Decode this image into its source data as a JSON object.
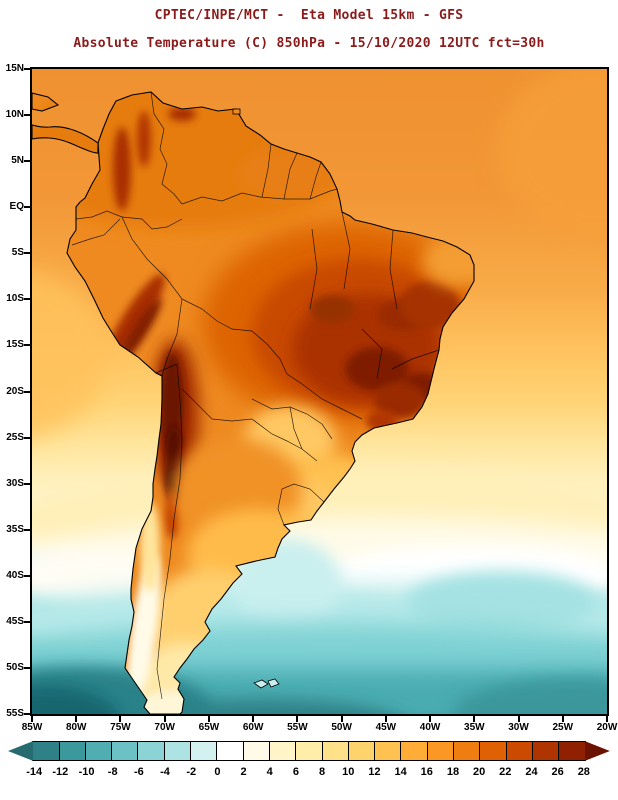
{
  "header": {
    "line1": "CPTEC/INPE/MCT -  Eta Model 15km - GFS",
    "line2": "Absolute Temperature (C) 850hPa - 15/10/2020 12UTC fct=30h",
    "title_color": "#8b1a1a"
  },
  "map": {
    "y_axis_labels": [
      "15N",
      "10N",
      "5N",
      "EQ",
      "5S",
      "10S",
      "15S",
      "20S",
      "25S",
      "30S",
      "35S",
      "40S",
      "45S",
      "50S",
      "55S"
    ],
    "x_axis_labels": [
      "85W",
      "80W",
      "75W",
      "70W",
      "65W",
      "60W",
      "55W",
      "50W",
      "45W",
      "40W",
      "35W",
      "30W",
      "25W",
      "20W"
    ]
  },
  "colorbar": {
    "tick_labels": [
      "-14",
      "-12",
      "-10",
      "-8",
      "-6",
      "-4",
      "-2",
      "0",
      "2",
      "4",
      "6",
      "8",
      "10",
      "12",
      "14",
      "16",
      "18",
      "20",
      "22",
      "24",
      "26",
      "28"
    ],
    "colors": [
      "#276b70",
      "#2e8287",
      "#3b989d",
      "#50adb1",
      "#6bc1c4",
      "#8bd3d5",
      "#aee3e4",
      "#d3f1f1",
      "#ffffff",
      "#fffbe8",
      "#fff5c9",
      "#ffedaa",
      "#ffe18a",
      "#ffd36b",
      "#ffc14f",
      "#ffad36",
      "#fb9722",
      "#f07d10",
      "#e06104",
      "#cc4a00",
      "#b03400",
      "#8f2000",
      "#6b1200"
    ]
  },
  "chart_data": {
    "type": "heatmap",
    "title": "Absolute Temperature (C) 850hPa - 15/10/2020 12UTC fct=30h",
    "model": "CPTEC/INPE/MCT -  Eta Model 15km - GFS",
    "x_range": [
      "85W",
      "20W"
    ],
    "y_range": [
      "15N",
      "55S"
    ],
    "scale_values": [
      -14,
      -12,
      -10,
      -8,
      -6,
      -4,
      -2,
      0,
      2,
      4,
      6,
      8,
      10,
      12,
      14,
      16,
      18,
      20,
      22,
      24,
      26,
      28
    ],
    "scale_unit": "C"
  }
}
